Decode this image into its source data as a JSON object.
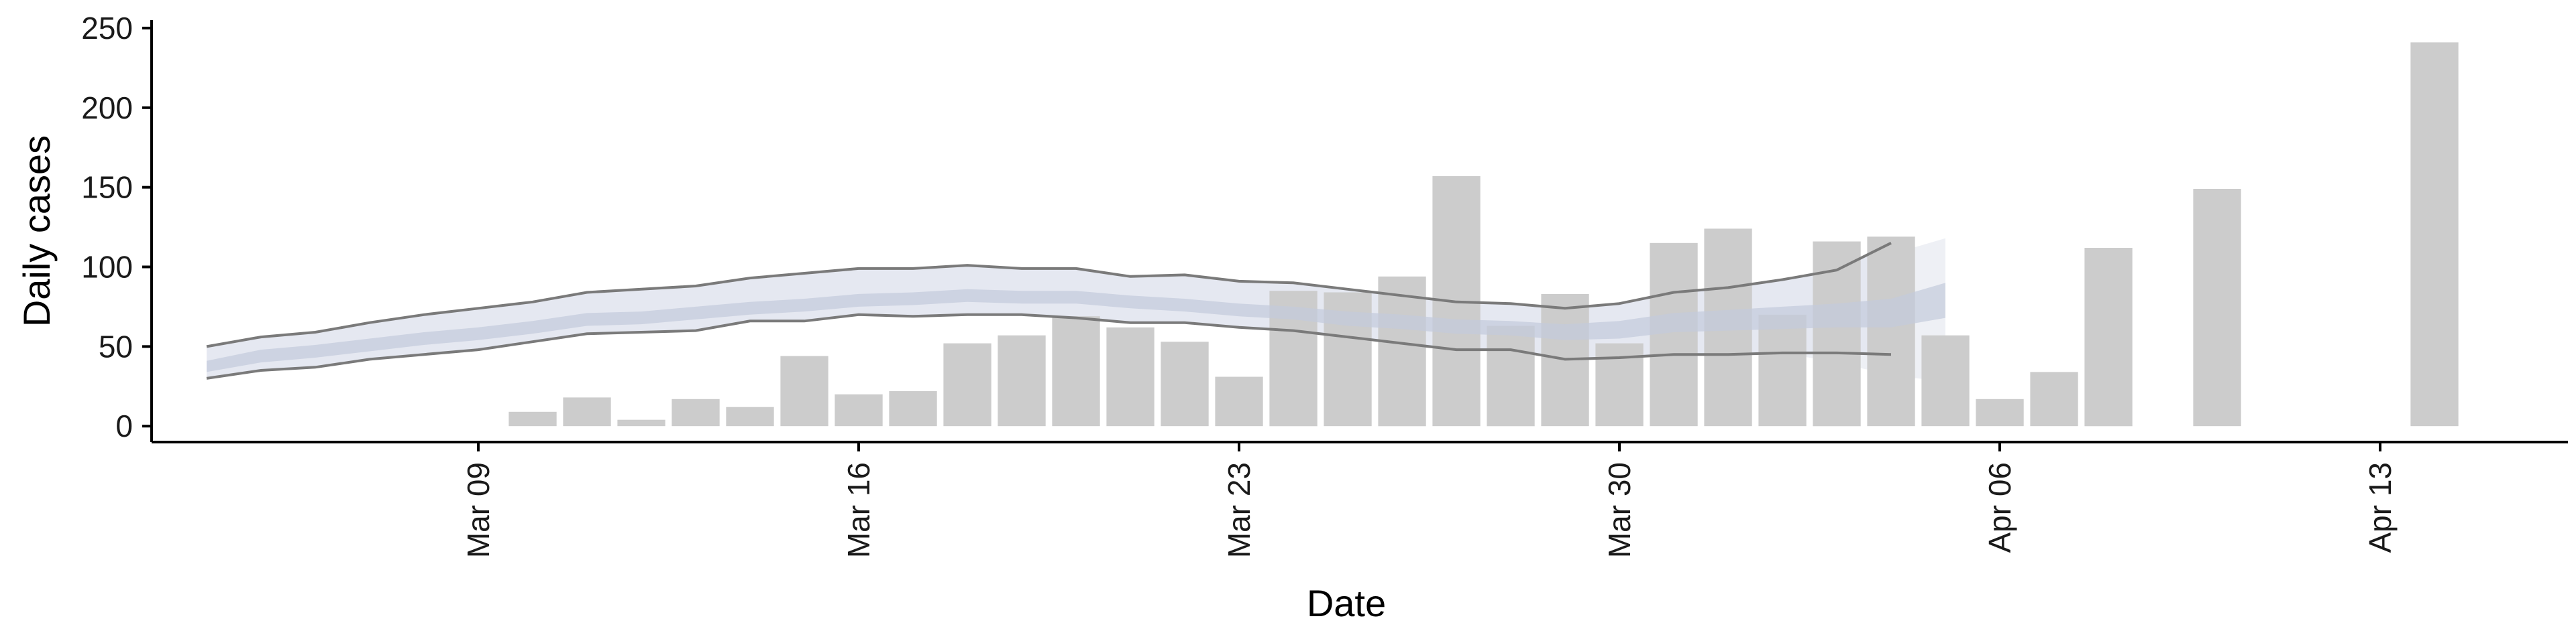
{
  "chart_data": {
    "type": "bar",
    "title": "",
    "xlabel": "Date",
    "ylabel": "Daily cases",
    "ylim": [
      -10,
      255
    ],
    "yticks": [
      0,
      50,
      100,
      150,
      200,
      250
    ],
    "grid": false,
    "legend": "none",
    "x_date_range": [
      "2020-03-03",
      "2020-04-16"
    ],
    "xticks": [
      {
        "date": "2020-03-09",
        "label": "Mar 09"
      },
      {
        "date": "2020-03-16",
        "label": "Mar 16"
      },
      {
        "date": "2020-03-23",
        "label": "Mar 23"
      },
      {
        "date": "2020-03-30",
        "label": "Mar 30"
      },
      {
        "date": "2020-04-06",
        "label": "Apr 06"
      },
      {
        "date": "2020-04-13",
        "label": "Apr 13"
      }
    ],
    "bars": {
      "name": "Daily cases",
      "color": "#cccccc",
      "x": [
        "2020-03-10",
        "2020-03-11",
        "2020-03-12",
        "2020-03-13",
        "2020-03-14",
        "2020-03-15",
        "2020-03-16",
        "2020-03-17",
        "2020-03-18",
        "2020-03-19",
        "2020-03-20",
        "2020-03-21",
        "2020-03-22",
        "2020-03-23",
        "2020-03-24",
        "2020-03-25",
        "2020-03-26",
        "2020-03-27",
        "2020-03-28",
        "2020-03-29",
        "2020-03-30",
        "2020-03-31",
        "2020-04-01",
        "2020-04-02",
        "2020-04-03",
        "2020-04-04",
        "2020-04-05",
        "2020-04-06",
        "2020-04-07",
        "2020-04-08",
        "2020-04-10",
        "2020-04-14"
      ],
      "values": [
        9,
        18,
        4,
        17,
        12,
        44,
        20,
        22,
        52,
        57,
        69,
        62,
        53,
        31,
        85,
        84,
        94,
        157,
        63,
        83,
        52,
        115,
        124,
        70,
        116,
        119,
        57,
        17,
        34,
        112,
        149,
        241
      ]
    },
    "estimate": {
      "x": [
        "2020-03-04",
        "2020-03-05",
        "2020-03-06",
        "2020-03-07",
        "2020-03-08",
        "2020-03-09",
        "2020-03-10",
        "2020-03-11",
        "2020-03-12",
        "2020-03-13",
        "2020-03-14",
        "2020-03-15",
        "2020-03-16",
        "2020-03-17",
        "2020-03-18",
        "2020-03-19",
        "2020-03-20",
        "2020-03-21",
        "2020-03-22",
        "2020-03-23",
        "2020-03-24",
        "2020-03-25",
        "2020-03-26",
        "2020-03-27",
        "2020-03-28",
        "2020-03-29",
        "2020-03-30",
        "2020-03-31",
        "2020-04-01",
        "2020-04-02",
        "2020-04-03",
        "2020-04-04",
        "2020-04-05"
      ],
      "outer_upper": [
        50,
        56,
        59,
        65,
        70,
        74,
        78,
        84,
        86,
        88,
        93,
        96,
        99,
        99,
        101,
        99,
        99,
        94,
        95,
        91,
        90,
        86,
        82,
        78,
        77,
        74,
        77,
        84,
        87,
        92,
        98,
        115,
        null
      ],
      "outer_lower": [
        30,
        35,
        37,
        42,
        45,
        48,
        53,
        58,
        59,
        60,
        66,
        66,
        70,
        69,
        70,
        70,
        68,
        65,
        65,
        62,
        60,
        56,
        52,
        48,
        48,
        42,
        43,
        45,
        45,
        46,
        46,
        45,
        null
      ],
      "inner_upper": [
        41,
        48,
        51,
        55,
        59,
        62,
        66,
        71,
        72,
        75,
        78,
        80,
        83,
        84,
        86,
        85,
        85,
        82,
        80,
        77,
        75,
        72,
        70,
        67,
        66,
        64,
        66,
        71,
        73,
        75,
        77,
        80,
        90
      ],
      "inner_lower": [
        34,
        40,
        43,
        47,
        51,
        54,
        58,
        63,
        64,
        67,
        70,
        72,
        75,
        76,
        78,
        77,
        77,
        74,
        72,
        69,
        67,
        63,
        61,
        58,
        57,
        54,
        55,
        59,
        60,
        61,
        62,
        62,
        68
      ],
      "outer_upper_tail": [
        {
          "x": "2020-04-03",
          "value": 100
        },
        {
          "x": "2020-04-04",
          "value": 108
        },
        {
          "x": "2020-04-05",
          "value": 118
        }
      ],
      "outer_lower_tail": [
        {
          "x": "2020-04-03",
          "value": 40
        },
        {
          "x": "2020-04-04",
          "value": 32
        },
        {
          "x": "2020-04-05",
          "value": 28
        }
      ],
      "colors": {
        "outer_band": "#e5e8f1",
        "inner_band": "#c3cadc",
        "outer_line": "#7a7a7a",
        "tail_band": "#eef0f5"
      }
    }
  }
}
